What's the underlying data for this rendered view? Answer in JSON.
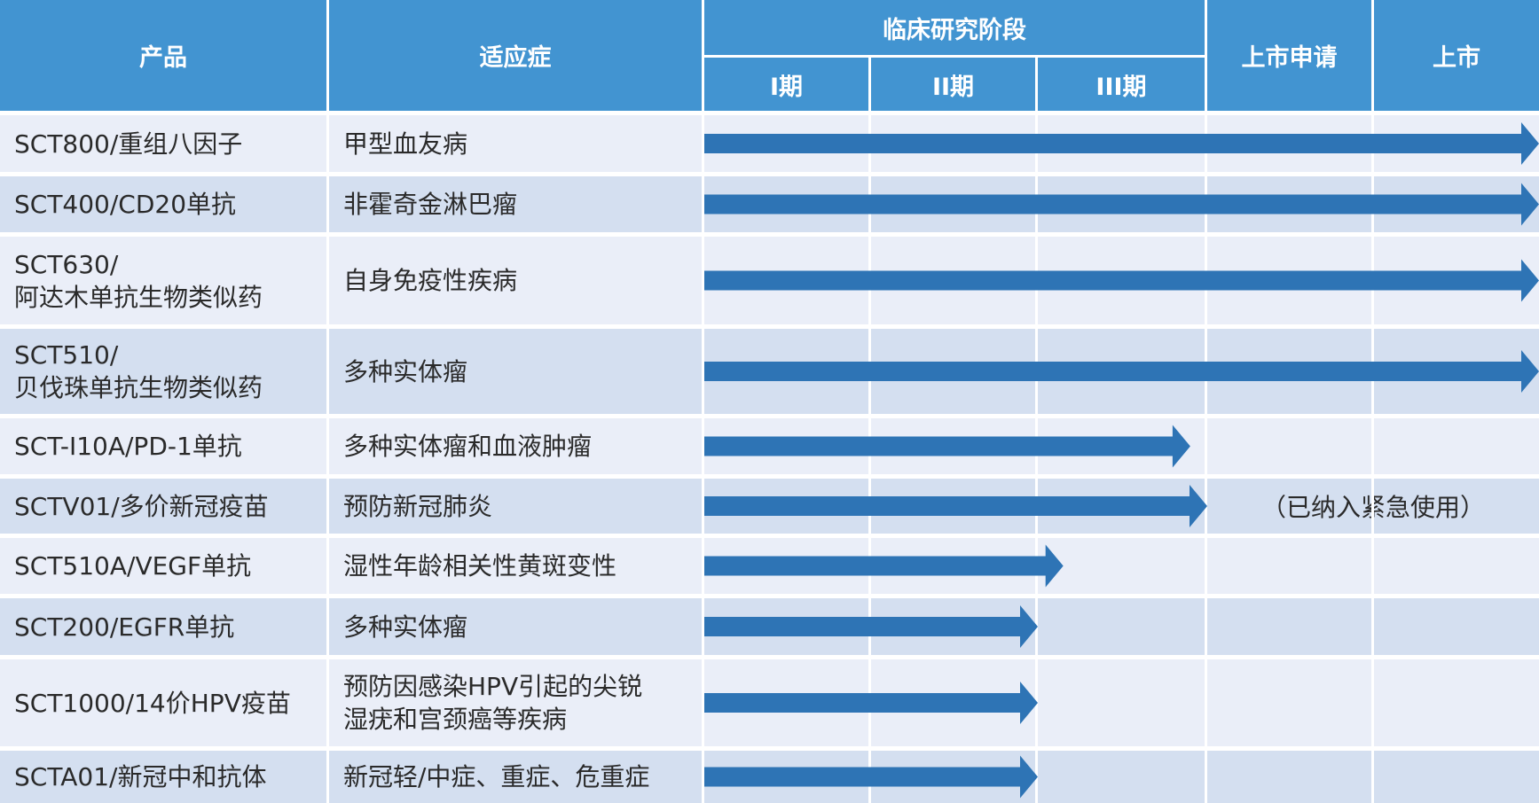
{
  "colors": {
    "header": "#4294d1",
    "row_light": "#eaeef8",
    "row_dark": "#d4dff0",
    "arrow": "#2e74b5",
    "text": "#2a2a2a"
  },
  "chart_data": {
    "type": "table",
    "columns": [
      "产品",
      "适应症"
    ],
    "phase_group": "临床研究阶段",
    "stages": [
      "I期",
      "II期",
      "III期",
      "上市申请",
      "上市"
    ],
    "rows": [
      {
        "product": [
          "SCT800/重组八因子"
        ],
        "indication": [
          "甲型血友病"
        ],
        "progress": 5.0,
        "note": ""
      },
      {
        "product": [
          "SCT400/CD20单抗"
        ],
        "indication": [
          "非霍奇金淋巴瘤"
        ],
        "progress": 5.0,
        "note": ""
      },
      {
        "product": [
          "SCT630/",
          "阿达木单抗生物类似药"
        ],
        "indication": [
          "自身免疫性疾病"
        ],
        "progress": 5.0,
        "note": ""
      },
      {
        "product": [
          "SCT510/",
          "贝伐珠单抗生物类似药"
        ],
        "indication": [
          "多种实体瘤"
        ],
        "progress": 5.0,
        "note": ""
      },
      {
        "product": [
          "SCT-I10A/PD-1单抗"
        ],
        "indication": [
          "多种实体瘤和血液肿瘤"
        ],
        "progress": 2.9,
        "note": ""
      },
      {
        "product": [
          "SCTV01/多价新冠疫苗"
        ],
        "indication": [
          "预防新冠肺炎"
        ],
        "progress": 3.0,
        "note": "（已纳入紧急使用）"
      },
      {
        "product": [
          "SCT510A/VEGF单抗"
        ],
        "indication": [
          "湿性年龄相关性黄斑变性"
        ],
        "progress": 2.15,
        "note": ""
      },
      {
        "product": [
          "SCT200/EGFR单抗"
        ],
        "indication": [
          "多种实体瘤"
        ],
        "progress": 2.0,
        "note": ""
      },
      {
        "product": [
          "SCT1000/14价HPV疫苗"
        ],
        "indication": [
          "预防因感染HPV引起的尖锐",
          "湿疣和宫颈癌等疾病"
        ],
        "progress": 2.0,
        "note": ""
      },
      {
        "product": [
          "SCTA01/新冠中和抗体"
        ],
        "indication": [
          "新冠轻/中症、重症、危重症"
        ],
        "progress": 2.0,
        "note": ""
      }
    ]
  }
}
